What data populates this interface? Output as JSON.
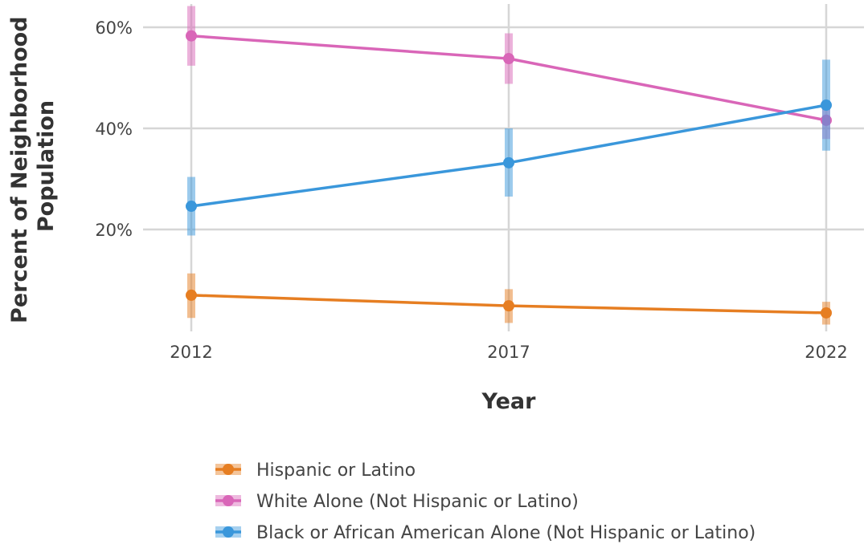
{
  "chart_data": {
    "type": "line",
    "title": "",
    "xlabel": "Year",
    "ylabel": "Percent of Neighborhood Population",
    "x": [
      2012,
      2017,
      2022
    ],
    "x_tick_labels": [
      "2012",
      "2017",
      "2022"
    ],
    "y_ticks": [
      0.2,
      0.4,
      0.6
    ],
    "y_tick_labels": [
      "20%",
      "40%",
      "60%"
    ],
    "ylim": [
      0.0,
      0.65
    ],
    "grid": true,
    "legend_position": "bottom",
    "error_bars": true,
    "series": [
      {
        "name": "Hispanic or Latino",
        "color": "#E67E22",
        "values": [
          0.07,
          0.049,
          0.035
        ],
        "lower": [
          0.025,
          0.015,
          0.012
        ],
        "upper": [
          0.113,
          0.082,
          0.057
        ]
      },
      {
        "name": "White Alone (Not Hispanic or Latino)",
        "color": "#D966B8",
        "values": [
          0.583,
          0.538,
          0.416
        ],
        "lower": [
          0.524,
          0.488,
          0.379
        ],
        "upper": [
          0.642,
          0.588,
          0.453
        ]
      },
      {
        "name": "Black or African American Alone (Not Hispanic or Latino)",
        "color": "#3A97DB",
        "values": [
          0.246,
          0.332,
          0.446
        ],
        "lower": [
          0.188,
          0.265,
          0.356
        ],
        "upper": [
          0.304,
          0.4,
          0.536
        ]
      }
    ]
  }
}
